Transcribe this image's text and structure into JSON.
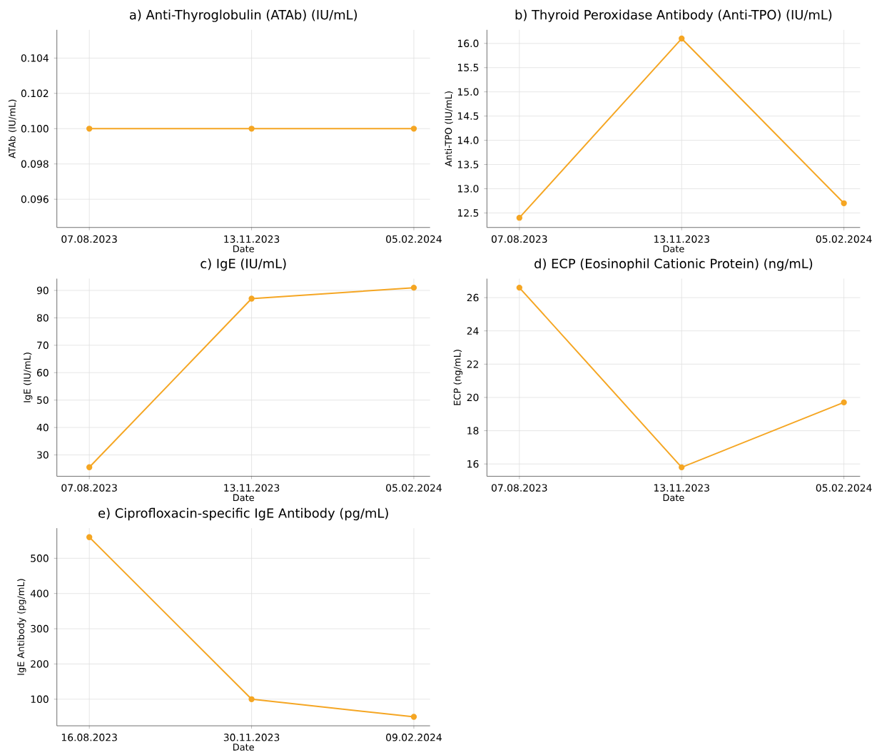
{
  "chart_data": [
    {
      "type": "line",
      "title": "a) Anti-Thyroglobulin (ATAb) (IU/mL)",
      "xlabel": "Date",
      "ylabel": "ATAb (IU/mL)",
      "categories": [
        "07.08.2023",
        "13.11.2023",
        "05.02.2024"
      ],
      "values": [
        0.1,
        0.1,
        0.1
      ],
      "color": "#f5a623",
      "ylim": [
        0.0944,
        0.1056
      ],
      "yticks": [
        0.096,
        0.098,
        {
          "value": 0.1,
          "label": "0.100"
        },
        0.102,
        0.104
      ],
      "grid": true,
      "marker": "circle"
    },
    {
      "type": "line",
      "title": "b) Thyroid Peroxidase Antibody (Anti-TPO) (IU/mL)",
      "xlabel": "Date",
      "ylabel": "Anti-TPO (IU/mL)",
      "categories": [
        "07.08.2023",
        "13.11.2023",
        "05.02.2024"
      ],
      "values": [
        12.4,
        16.1,
        12.7
      ],
      "color": "#f5a623",
      "ylim": [
        12.2,
        16.28
      ],
      "yticks": [
        12.5,
        {
          "value": 13,
          "label": "13.0"
        },
        13.5,
        {
          "value": 14,
          "label": "14.0"
        },
        14.5,
        {
          "value": 15,
          "label": "15.0"
        },
        15.5,
        {
          "value": 16,
          "label": "16.0"
        }
      ],
      "grid": true,
      "marker": "circle"
    },
    {
      "type": "line",
      "title": "c) IgE (IU/mL)",
      "xlabel": "Date",
      "ylabel": "IgE (IU/mL)",
      "categories": [
        "07.08.2023",
        "13.11.2023",
        "05.02.2024"
      ],
      "values": [
        25.5,
        87,
        91
      ],
      "color": "#f5a623",
      "ylim": [
        22.2,
        94.3
      ],
      "yticks": [
        30,
        40,
        50,
        60,
        70,
        80,
        90
      ],
      "grid": true,
      "marker": "circle"
    },
    {
      "type": "line",
      "title": "d) ECP (Eosinophil Cationic Protein) (ng/mL)",
      "xlabel": "Date",
      "ylabel": "ECP (ng/mL)",
      "categories": [
        "07.08.2023",
        "13.11.2023",
        "05.02.2024"
      ],
      "values": [
        26.6,
        15.8,
        19.7
      ],
      "color": "#f5a623",
      "ylim": [
        15.26,
        27.14
      ],
      "yticks": [
        16,
        18,
        20,
        22,
        24,
        26
      ],
      "grid": true,
      "marker": "circle"
    },
    {
      "type": "line",
      "title": "e) Ciprofloxacin-specific IgE Antibody (pg/mL)",
      "xlabel": "Date",
      "ylabel": "IgE Antibody (pg/mL)",
      "categories": [
        "16.08.2023",
        "30.11.2023",
        "09.02.2024"
      ],
      "values": [
        560,
        100,
        50
      ],
      "color": "#f5a623",
      "ylim": [
        24.5,
        585.5
      ],
      "yticks": [
        100,
        200,
        300,
        400,
        500
      ],
      "grid": true,
      "marker": "circle"
    }
  ]
}
